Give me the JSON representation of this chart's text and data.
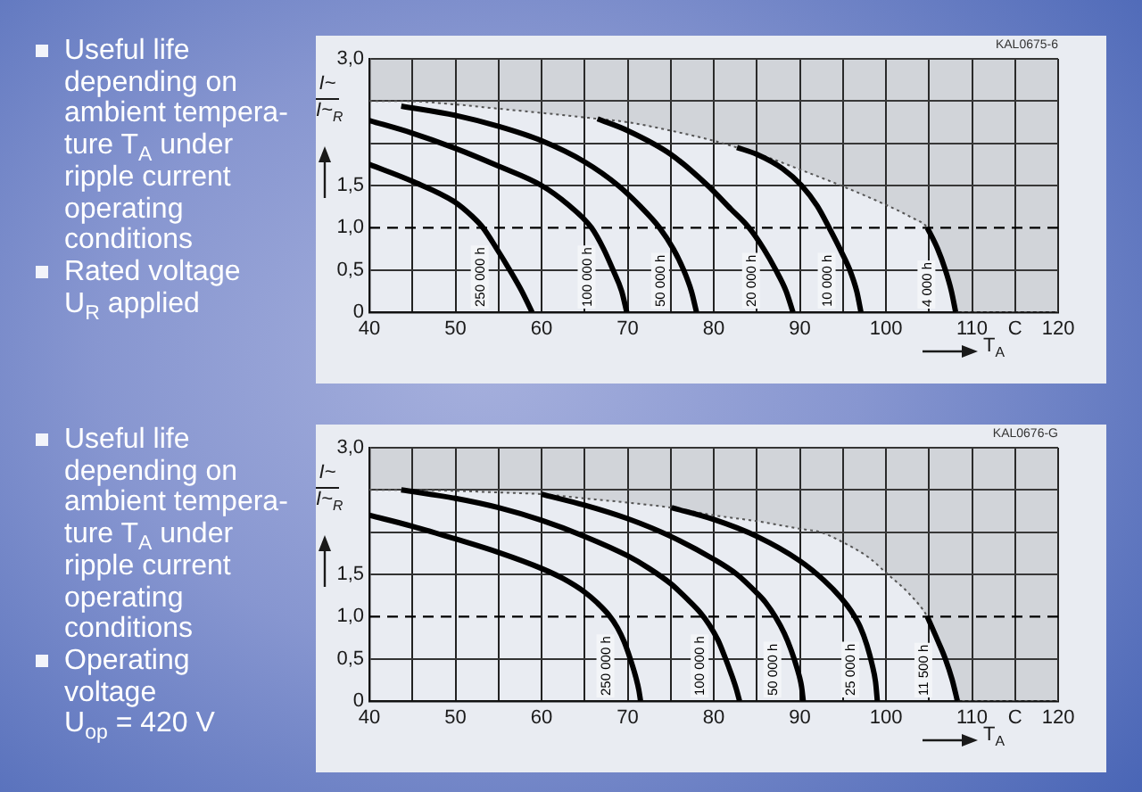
{
  "chart_data": [
    {
      "type": "line",
      "annotations": [
        "Useful life\ndepending on\nambient tempera-\nture T$_{A}$ under\nripple current\noperating\nconditions",
        "Rated voltage\nU$_{R}$ applied",
        "KAL0675-6"
      ],
      "xlabel": "T$_{A}$",
      "ylabel": "I~\nI~$_{R}$",
      "xlim": [
        40,
        120
      ],
      "xticks": [
        40,
        {
          "value": 45,
          "label": null
        },
        50,
        {
          "value": 55,
          "label": null
        },
        60,
        {
          "value": 65,
          "label": null
        },
        70,
        {
          "value": 75,
          "label": null
        },
        80,
        {
          "value": 85,
          "label": null
        },
        90,
        {
          "value": 95,
          "label": null
        },
        100,
        {
          "value": 105,
          "label": null
        },
        110,
        {
          "value": 115,
          "label": "C"
        },
        120
      ],
      "ylim": [
        0,
        3
      ],
      "yticks": [
        0,
        {
          "value": 0.5,
          "label": "0,5"
        },
        {
          "value": 1,
          "label": "1,0"
        },
        {
          "value": 1.5,
          "label": "1,5"
        },
        {
          "value": 2,
          "label": null
        },
        {
          "value": 2.5,
          "label": null
        },
        {
          "value": 3,
          "label": "3,0"
        }
      ],
      "grid": true,
      "ref_lines": [
        {
          "axis": "y",
          "value": 1,
          "line_style": "dashed",
          "color": "#000000"
        }
      ],
      "series": [
        {
          "name": "250 000 h",
          "color": "#000000",
          "x": [
            40,
            45,
            50,
            52,
            53.2,
            54.8,
            56.3,
            57.7,
            58.9
          ],
          "values": [
            1.75,
            1.55,
            1.3,
            1.13,
            1.0,
            0.75,
            0.5,
            0.25,
            0
          ]
        },
        {
          "name": "100 000 h",
          "color": "#000000",
          "x": [
            40,
            45,
            50,
            55,
            60,
            63,
            65.8,
            67.2,
            68.3,
            69.3,
            69.9
          ],
          "values": [
            2.27,
            2.12,
            1.94,
            1.73,
            1.5,
            1.28,
            1.0,
            0.75,
            0.5,
            0.25,
            0
          ]
        },
        {
          "name": "50 000 h",
          "color": "#000000",
          "x": [
            43.7,
            50,
            55,
            60,
            65,
            68.9,
            71.5,
            73.7,
            75.3,
            76.5,
            77.4,
            78
          ],
          "values": [
            2.44,
            2.33,
            2.2,
            2.03,
            1.78,
            1.5,
            1.25,
            1.0,
            0.75,
            0.5,
            0.25,
            0
          ]
        },
        {
          "name": "20 000 h",
          "color": "#000000",
          "x": [
            66.5,
            70,
            75,
            79.3,
            82,
            84.1,
            85.8,
            87.2,
            88.4,
            89.2
          ],
          "values": [
            2.29,
            2.15,
            1.87,
            1.5,
            1.22,
            1.0,
            0.75,
            0.5,
            0.25,
            0
          ]
        },
        {
          "name": "10 000 h",
          "color": "#000000",
          "x": [
            82.7,
            85,
            88,
            90.2,
            92,
            93.4,
            94.8,
            95.8,
            96.6,
            97.1
          ],
          "values": [
            1.95,
            1.87,
            1.7,
            1.5,
            1.26,
            1.0,
            0.72,
            0.5,
            0.25,
            0
          ]
        },
        {
          "name": "4 000 h",
          "color": "#000000",
          "x": [
            104.8,
            106,
            106.9,
            107.6,
            108.1
          ],
          "values": [
            1.0,
            0.75,
            0.5,
            0.25,
            0
          ]
        },
        {
          "type": "line",
          "line_style": "dotted",
          "color": "#555555",
          "x": [
            40,
            44,
            50,
            55,
            60,
            66.5,
            70,
            75,
            80,
            82.7,
            85,
            90,
            95,
            100,
            103,
            104.8,
            106,
            106.9,
            107.6,
            108.1,
            120
          ],
          "values": [
            2.5,
            2.5,
            2.46,
            2.41,
            2.36,
            2.29,
            2.25,
            2.15,
            2.03,
            1.95,
            1.88,
            1.69,
            1.49,
            1.27,
            1.12,
            1.0,
            0.75,
            0.5,
            0.25,
            0,
            0
          ],
          "lower": [
            2.5,
            2.5,
            2.46,
            2.41,
            2.36,
            2.29,
            2.25,
            2.15,
            2.03,
            1.95,
            1.88,
            1.69,
            1.49,
            1.27,
            1.12,
            1.0,
            0.75,
            0.5,
            0.25,
            0,
            0
          ],
          "upper": [
            3,
            3,
            3,
            3,
            3,
            3,
            3,
            3,
            3,
            3,
            3,
            3,
            3,
            3,
            3,
            3,
            3,
            3,
            3,
            3,
            3
          ]
        }
      ]
    },
    {
      "type": "line",
      "annotations": [
        "Useful life\ndepending on\nambient tempera-\nture T$_{A}$ under\nripple current\noperating\nconditions",
        "Operating\nvoltage\nU$_{op}$ = 420 V",
        "KAL0676-G"
      ],
      "xlabel": "T$_{A}$",
      "ylabel": "I~\nI~$_{R}$",
      "xlim": [
        40,
        120
      ],
      "xticks": [
        40,
        {
          "value": 45,
          "label": null
        },
        50,
        {
          "value": 55,
          "label": null
        },
        60,
        {
          "value": 65,
          "label": null
        },
        70,
        {
          "value": 75,
          "label": null
        },
        80,
        {
          "value": 85,
          "label": null
        },
        90,
        {
          "value": 95,
          "label": null
        },
        100,
        {
          "value": 105,
          "label": null
        },
        110,
        {
          "value": 115,
          "label": "C"
        },
        120
      ],
      "ylim": [
        0,
        3
      ],
      "yticks": [
        0,
        {
          "value": 0.5,
          "label": "0,5"
        },
        {
          "value": 1,
          "label": "1,0"
        },
        {
          "value": 1.5,
          "label": "1,5"
        },
        {
          "value": 2,
          "label": null
        },
        {
          "value": 2.5,
          "label": null
        },
        {
          "value": 3,
          "label": "3,0"
        }
      ],
      "grid": true,
      "ref_lines": [
        {
          "axis": "y",
          "value": 1,
          "line_style": "dashed",
          "color": "#000000"
        }
      ],
      "series": [
        {
          "name": "250 000 h",
          "color": "#000000",
          "x": [
            40,
            45,
            50,
            55,
            60,
            62.5,
            65,
            66.5,
            67.8,
            68.8,
            69.6,
            70.3,
            70.9,
            71.3,
            71.5
          ],
          "values": [
            2.2,
            2.07,
            1.92,
            1.76,
            1.57,
            1.45,
            1.29,
            1.16,
            1.02,
            0.87,
            0.7,
            0.5,
            0.3,
            0.13,
            0
          ]
        },
        {
          "name": "100 000 h",
          "color": "#000000",
          "x": [
            43.7,
            50,
            55,
            60,
            65,
            70,
            72.5,
            75,
            77,
            78.5,
            79.5,
            80.5,
            81.3,
            82,
            82.6,
            83
          ],
          "values": [
            2.5,
            2.4,
            2.29,
            2.14,
            1.95,
            1.72,
            1.57,
            1.39,
            1.2,
            1.04,
            0.9,
            0.72,
            0.52,
            0.33,
            0.15,
            0
          ]
        },
        {
          "name": "50 000 h",
          "color": "#000000",
          "x": [
            60,
            65,
            70,
            75,
            80,
            82.7,
            85,
            86,
            87.2,
            88.2,
            89,
            89.7,
            90.2,
            90.4
          ],
          "values": [
            2.45,
            2.32,
            2.16,
            1.95,
            1.68,
            1.5,
            1.28,
            1.17,
            0.99,
            0.8,
            0.6,
            0.38,
            0.17,
            0
          ]
        },
        {
          "name": "25 000 h",
          "color": "#000000",
          "x": [
            75.1,
            80,
            85,
            90,
            92.8,
            94.8,
            96,
            97,
            97.8,
            98.4,
            98.8,
            99
          ],
          "values": [
            2.29,
            2.15,
            1.95,
            1.66,
            1.43,
            1.22,
            1.06,
            0.88,
            0.66,
            0.43,
            0.22,
            0
          ]
        },
        {
          "name": "11 500 h",
          "color": "#000000",
          "x": [
            104.8,
            106,
            106.9,
            107.7,
            108.3
          ],
          "values": [
            1.0,
            0.72,
            0.5,
            0.25,
            0
          ]
        },
        {
          "type": "line",
          "line_style": "dotted",
          "color": "#555555",
          "x": [
            40,
            44,
            50,
            55,
            60,
            65,
            70,
            75.1,
            80,
            85,
            90,
            92.4,
            95,
            98,
            100,
            102.8,
            104.8,
            106,
            106.9,
            107.7,
            108.3,
            120
          ],
          "values": [
            2.5,
            2.5,
            2.49,
            2.47,
            2.45,
            2.4,
            2.35,
            2.29,
            2.2,
            2.13,
            2.04,
            2.0,
            1.88,
            1.7,
            1.52,
            1.26,
            1.0,
            0.72,
            0.5,
            0.25,
            0,
            0
          ],
          "lower": [
            2.5,
            2.5,
            2.49,
            2.47,
            2.45,
            2.4,
            2.35,
            2.29,
            2.2,
            2.13,
            2.04,
            2.0,
            1.88,
            1.7,
            1.52,
            1.26,
            1.0,
            0.72,
            0.5,
            0.25,
            0,
            0
          ],
          "upper": [
            3,
            3,
            3,
            3,
            3,
            3,
            3,
            3,
            3,
            3,
            3,
            3,
            3,
            3,
            3,
            3,
            3,
            3,
            3,
            3,
            3,
            3
          ]
        }
      ]
    }
  ]
}
